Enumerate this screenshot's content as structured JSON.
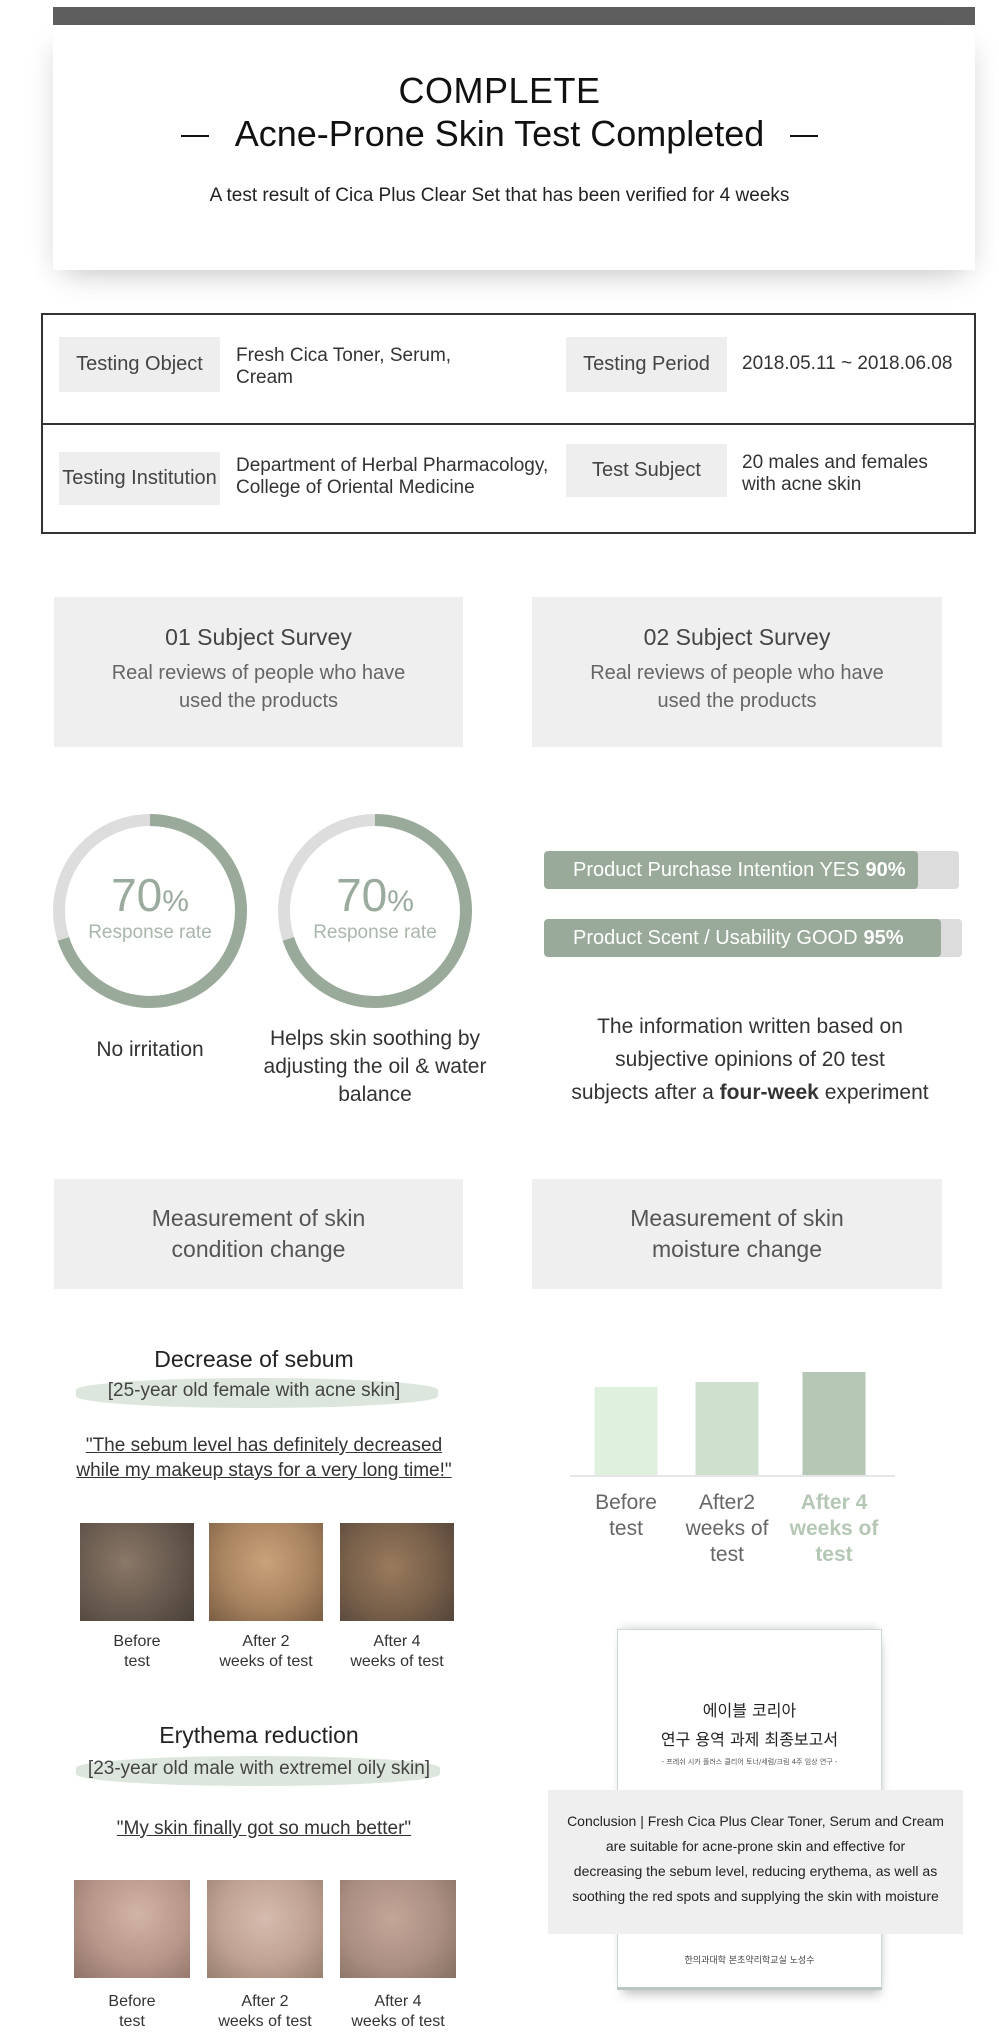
{
  "header": {
    "complete": "COMPLETE",
    "title": "Acne-Prone Skin Test Completed",
    "subtitle": "A test result of Cica Plus Clear Set that has been verified for 4 weeks"
  },
  "info": {
    "testing_object_label": "Testing Object",
    "testing_object_value": "Fresh Cica Toner, Serum, Cream",
    "testing_period_label": "Testing Period",
    "testing_period_value": "2018.05.11 ~ 2018.06.08",
    "testing_institution_label": "Testing Institution",
    "testing_institution_line1": "Department of Herbal Pharmacology,",
    "testing_institution_line2": "College of Oriental Medicine",
    "test_subject_label": "Test Subject",
    "test_subject_line1": "20 males and females",
    "test_subject_line2": "with acne skin"
  },
  "surveys": [
    {
      "title": "01 Subject Survey",
      "desc_line1": "Real reviews of people who have",
      "desc_line2": "used the products"
    },
    {
      "title": "02 Subject Survey",
      "desc_line1": "Real reviews of people who have",
      "desc_line2": "used the products"
    }
  ],
  "donuts": [
    {
      "value": 70,
      "number": "70",
      "unit": "%",
      "label": "Response rate",
      "caption_lines": [
        "No irritation"
      ]
    },
    {
      "value": 70,
      "number": "70",
      "unit": "%",
      "label": "Response rate",
      "caption_lines": [
        "Helps skin soothing by",
        "adjusting the oil & water",
        "balance"
      ]
    }
  ],
  "bars": [
    {
      "label": "Product Purchase Intention YES",
      "value_text": "90%",
      "value": 90
    },
    {
      "label": "Product Scent / Usability GOOD",
      "value_text": "95%",
      "value": 95
    }
  ],
  "info_note": {
    "line1": "The information written based on",
    "line2": "subjective opinions of 20 test",
    "line3_prefix": "subjects after a ",
    "line3_bold": "four-week",
    "line3_suffix": " experiment"
  },
  "measurements": [
    {
      "line1": "Measurement of skin",
      "line2": "condition change"
    },
    {
      "line1": "Measurement of skin",
      "line2": "moisture change"
    }
  ],
  "sebum": {
    "title": "Decrease of sebum",
    "subject": "[25-year old female with acne skin]",
    "quote_line1": "\"The sebum level has definitely decreased",
    "quote_line2": "while my makeup stays for a very long time!\"",
    "captions": [
      [
        "Before",
        "test"
      ],
      [
        "After 2",
        "weeks of test"
      ],
      [
        "After 4",
        "weeks of test"
      ]
    ]
  },
  "erythema": {
    "title": "Erythema reduction",
    "subject": "[23-year old male with extremel oily skin]",
    "quote": "\"My skin finally got so much better\"",
    "captions": [
      [
        "Before",
        "test"
      ],
      [
        "After 2",
        "weeks of test"
      ],
      [
        "After 4",
        "weeks of test"
      ]
    ]
  },
  "chart_data": {
    "type": "bar",
    "categories": [
      "Before test",
      "After2 weeks of test",
      "After 4 weeks of test"
    ],
    "category_lines": [
      [
        "Before",
        "test"
      ],
      [
        "After2",
        "weeks of",
        "test"
      ],
      [
        "After 4",
        "weeks of",
        "test"
      ]
    ],
    "values": [
      88,
      93,
      103
    ],
    "colors": [
      "#dff0df",
      "#cfe0cf",
      "#b5c7b5"
    ],
    "title": "",
    "xlabel": "",
    "ylabel": ""
  },
  "report": {
    "kr_title1": "에이블 코리아",
    "kr_title2": "연구 용역 과제 최종보고서",
    "kr_sub": "- 프레쉬 시카 플러스 클리어 토너/세럼/크림 4주 임상 연구 -",
    "kr_footer": "한의과대학 본초약리학교실 노성수",
    "conclusion_line1": "Conclusion | Fresh Cica Plus Clear Toner, Serum and Cream",
    "conclusion_line2": "are suitable for acne-prone skin and effective for",
    "conclusion_line3": "decreasing the sebum level, reducing erythema, as well as",
    "conclusion_line4": "soothing the red spots and supplying the skin with moisture"
  }
}
